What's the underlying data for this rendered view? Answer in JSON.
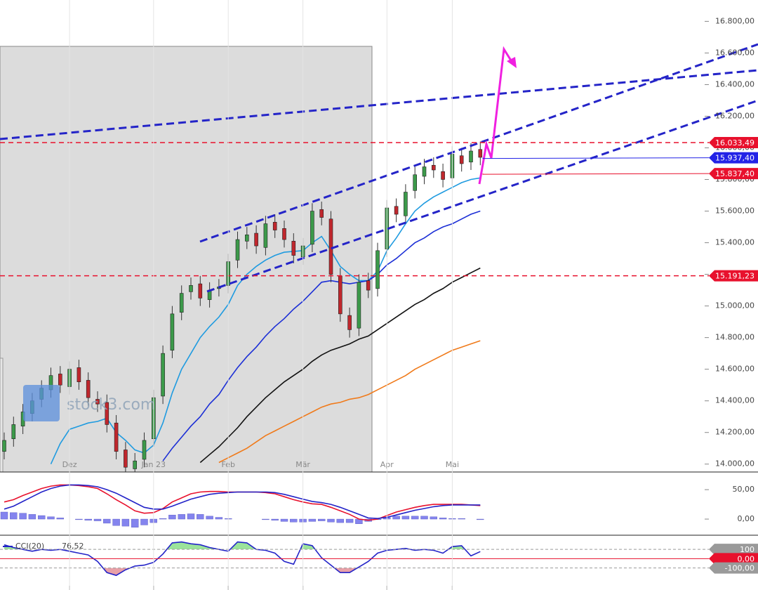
{
  "chart_data": [
    {
      "type": "candlestick",
      "categories": [
        null,
        null,
        null,
        null,
        null,
        null,
        null,
        "Dez",
        null,
        null,
        null,
        null,
        null,
        null,
        null,
        null,
        "Jan 23",
        null,
        null,
        null,
        null,
        null,
        null,
        null,
        "Feb",
        null,
        null,
        null,
        null,
        null,
        null,
        null,
        "Mär",
        null,
        null,
        null,
        null,
        null,
        null,
        null,
        null,
        "Apr",
        null,
        null,
        null,
        null,
        null,
        null,
        "Mai",
        null,
        null,
        null
      ],
      "open": [
        14080,
        14160,
        14240,
        14320,
        14410,
        14470,
        14570,
        14490,
        14610,
        14530,
        14410,
        14390,
        14260,
        14090,
        13970,
        14030,
        14160,
        14430,
        14720,
        14960,
        15090,
        15140,
        15040,
        15110,
        15130,
        15290,
        15410,
        15460,
        15370,
        15530,
        15490,
        15410,
        15310,
        15390,
        15610,
        15550,
        15190,
        14940,
        14860,
        15160,
        15110,
        15360,
        15630,
        15570,
        15730,
        15820,
        15890,
        15850,
        15810,
        15950,
        15910,
        15990
      ],
      "high": [
        14200,
        14300,
        14380,
        14450,
        14530,
        14610,
        14620,
        14650,
        14660,
        14580,
        14460,
        14440,
        14310,
        14140,
        14070,
        14200,
        14470,
        14750,
        15000,
        15130,
        15180,
        15190,
        15150,
        15170,
        15330,
        15470,
        15500,
        15510,
        15570,
        15580,
        15540,
        15460,
        15430,
        15650,
        15660,
        15600,
        15240,
        14990,
        15200,
        15210,
        15400,
        15670,
        15680,
        15770,
        15880,
        15930,
        15940,
        15900,
        16010,
        16000,
        16030,
        16040
      ],
      "low": [
        14030,
        14110,
        14190,
        14270,
        14360,
        14420,
        14450,
        14440,
        14470,
        14370,
        14330,
        14200,
        14030,
        13930,
        13920,
        13980,
        14110,
        14380,
        14670,
        14910,
        15040,
        15000,
        14990,
        15060,
        15080,
        15240,
        15360,
        15330,
        15320,
        15430,
        15370,
        15270,
        15260,
        15340,
        15510,
        15150,
        14900,
        14800,
        14810,
        15050,
        15060,
        15310,
        15530,
        15520,
        15680,
        15770,
        15810,
        15750,
        15760,
        15850,
        15860,
        15890
      ],
      "close": [
        14150,
        14250,
        14330,
        14400,
        14480,
        14560,
        14500,
        14600,
        14520,
        14420,
        14380,
        14250,
        14080,
        13980,
        14020,
        14150,
        14420,
        14700,
        14950,
        15080,
        15130,
        15050,
        15100,
        15120,
        15280,
        15420,
        15450,
        15380,
        15520,
        15480,
        15420,
        15320,
        15380,
        15600,
        15560,
        15200,
        14950,
        14850,
        15150,
        15100,
        15350,
        15620,
        15580,
        15720,
        15830,
        15880,
        15860,
        15800,
        15960,
        15900,
        15980,
        15940
      ],
      "up_color": "#3c9a4a",
      "down_color": "#c0272d",
      "series": [
        {
          "color": "#1f9be0",
          "values": [
            null,
            null,
            null,
            null,
            null,
            14000,
            14130,
            14220,
            14240,
            14260,
            14270,
            14290,
            14200,
            14150,
            14090,
            14070,
            14120,
            14260,
            14450,
            14600,
            14700,
            14800,
            14870,
            14930,
            15010,
            15130,
            15200,
            15250,
            15290,
            15320,
            15340,
            15345,
            15350,
            15400,
            15440,
            15350,
            15250,
            15200,
            15160,
            15160,
            15220,
            15350,
            15430,
            15520,
            15600,
            15650,
            15690,
            15720,
            15750,
            15780,
            15800,
            15810
          ]
        },
        {
          "color": "#1c2fd6",
          "values": [
            null,
            null,
            null,
            null,
            null,
            null,
            null,
            null,
            null,
            null,
            null,
            null,
            null,
            null,
            null,
            null,
            null,
            14020,
            14100,
            14170,
            14240,
            14300,
            14380,
            14440,
            14530,
            14610,
            14680,
            14740,
            14810,
            14870,
            14920,
            14980,
            15030,
            15090,
            15150,
            15160,
            15150,
            15140,
            15150,
            15160,
            15200,
            15260,
            15300,
            15350,
            15400,
            15430,
            15470,
            15500,
            15520,
            15550,
            15580,
            15600
          ]
        },
        {
          "color": "#111111",
          "values": [
            null,
            null,
            null,
            null,
            null,
            null,
            null,
            null,
            null,
            null,
            null,
            null,
            null,
            null,
            null,
            null,
            null,
            null,
            null,
            null,
            null,
            14010,
            14060,
            14110,
            14170,
            14230,
            14300,
            14360,
            14420,
            14470,
            14520,
            14560,
            14600,
            14650,
            14690,
            14720,
            14740,
            14760,
            14790,
            14810,
            14850,
            14890,
            14930,
            14970,
            15010,
            15040,
            15080,
            15110,
            15150,
            15180,
            15210,
            15240
          ]
        },
        {
          "color": "#f07a1a",
          "values": [
            null,
            null,
            null,
            null,
            null,
            null,
            null,
            null,
            null,
            null,
            null,
            null,
            null,
            null,
            null,
            null,
            null,
            null,
            null,
            null,
            null,
            null,
            null,
            14010,
            14040,
            14070,
            14100,
            14140,
            14180,
            14210,
            14240,
            14270,
            14300,
            14330,
            14360,
            14380,
            14390,
            14410,
            14420,
            14440,
            14470,
            14500,
            14530,
            14560,
            14600,
            14630,
            14660,
            14690,
            14720,
            14740,
            14760,
            14780
          ]
        }
      ],
      "ylim": [
        13950,
        16935
      ],
      "yticks": [
        {
          "value": 16800,
          "label": "16.800,00"
        },
        {
          "value": 16600,
          "label": "16.600,00"
        },
        {
          "value": 16400,
          "label": "16.400,00"
        },
        {
          "value": 16200,
          "label": "16.200,00"
        },
        {
          "value": 16000,
          "label": "16.000,00"
        },
        {
          "value": 15800,
          "label": "15.800,00"
        },
        {
          "value": 15600,
          "label": "15.600,00"
        },
        {
          "value": 15400,
          "label": "15.400,00"
        },
        {
          "value": 15200,
          "label": "15.200,00"
        },
        {
          "value": 15000,
          "label": "15.000,00"
        },
        {
          "value": 14800,
          "label": "14.800,00"
        },
        {
          "value": 14600,
          "label": "14.600,00"
        },
        {
          "value": 14400,
          "label": "14.400,00"
        },
        {
          "value": 14200,
          "label": "14.200,00"
        },
        {
          "value": 14000,
          "label": "14.000,00"
        }
      ],
      "levels": [
        {
          "value": 16033.49,
          "label": "16.033,49",
          "color": "#e8112d"
        },
        {
          "value": 15191.23,
          "label": "15.191,23",
          "color": "#e8112d"
        }
      ],
      "price_tags": [
        {
          "value": 15937.4,
          "label": "15.937,40",
          "color": "#2323e6"
        },
        {
          "value": 15837.4,
          "label": "15.837,40",
          "color": "#e8112d"
        }
      ]
    },
    {
      "type": "macd",
      "series": [
        {
          "color": "#e8112d",
          "values": [
            29,
            33,
            40,
            46,
            52,
            56,
            58,
            58,
            57,
            55,
            52,
            43,
            33,
            24,
            14,
            10,
            11,
            18,
            29,
            36,
            43,
            46,
            47,
            47,
            46,
            46,
            46,
            46,
            45,
            43,
            38,
            33,
            29,
            26,
            25,
            20,
            14,
            8,
            0,
            -2,
            0,
            6,
            12,
            16,
            20,
            23,
            25,
            25,
            25,
            25,
            24,
            23
          ]
        },
        {
          "color": "#2323c8",
          "values": [
            17,
            22,
            30,
            38,
            46,
            52,
            56,
            58,
            58,
            57,
            55,
            50,
            44,
            36,
            28,
            20,
            17,
            17,
            22,
            28,
            34,
            38,
            42,
            44,
            45,
            46,
            46,
            46,
            46,
            45,
            42,
            38,
            34,
            30,
            28,
            25,
            20,
            14,
            8,
            2,
            1,
            3,
            7,
            11,
            15,
            18,
            21,
            23,
            24,
            24,
            24,
            24
          ]
        }
      ],
      "histogram": {
        "color": "#8484ee",
        "values": [
          12,
          11,
          10,
          8,
          6,
          4,
          2,
          0,
          -1,
          -2,
          -3,
          -7,
          -11,
          -12,
          -14,
          -10,
          -6,
          1,
          7,
          8,
          9,
          8,
          5,
          3,
          1,
          0,
          0,
          0,
          -1,
          -2,
          -4,
          -5,
          -5,
          -4,
          -3,
          -5,
          -6,
          -6,
          -8,
          -4,
          -1,
          3,
          5,
          5,
          5,
          5,
          4,
          2,
          1,
          1,
          0,
          -1
        ]
      },
      "ylim": [
        -25,
        80
      ],
      "yticks": [
        {
          "value": 50,
          "label": "50,00"
        },
        {
          "value": 0,
          "label": "0,00"
        }
      ]
    },
    {
      "type": "cci",
      "series": [
        {
          "name": "CCI(20)",
          "color": "#2323c8",
          "last_label": "76,52",
          "values": [
            150,
            120,
            100,
            80,
            100,
            90,
            100,
            80,
            60,
            40,
            -30,
            -150,
            -180,
            -120,
            -80,
            -70,
            -40,
            50,
            170,
            180,
            160,
            150,
            120,
            100,
            80,
            180,
            170,
            100,
            90,
            60,
            -30,
            -60,
            160,
            140,
            10,
            -70,
            -150,
            -150,
            -90,
            -30,
            60,
            90,
            100,
            110,
            90,
            100,
            90,
            60,
            130,
            140,
            30,
            76.52
          ]
        }
      ],
      "overbought_fill": "#9be39b",
      "oversold_fill": "#e8a0a8",
      "ylim": [
        -300,
        230
      ],
      "yticks": [
        100,
        {
          "value": 0,
          "label": "0,00"
        },
        {
          "value": -100,
          "label": "-100,00"
        }
      ],
      "tick_colors": [
        "#9a9a9a",
        "#e8112d",
        "#9a9a9a"
      ],
      "tick_dashed": [
        true,
        false,
        true
      ]
    }
  ],
  "watermark": "stock3.com"
}
